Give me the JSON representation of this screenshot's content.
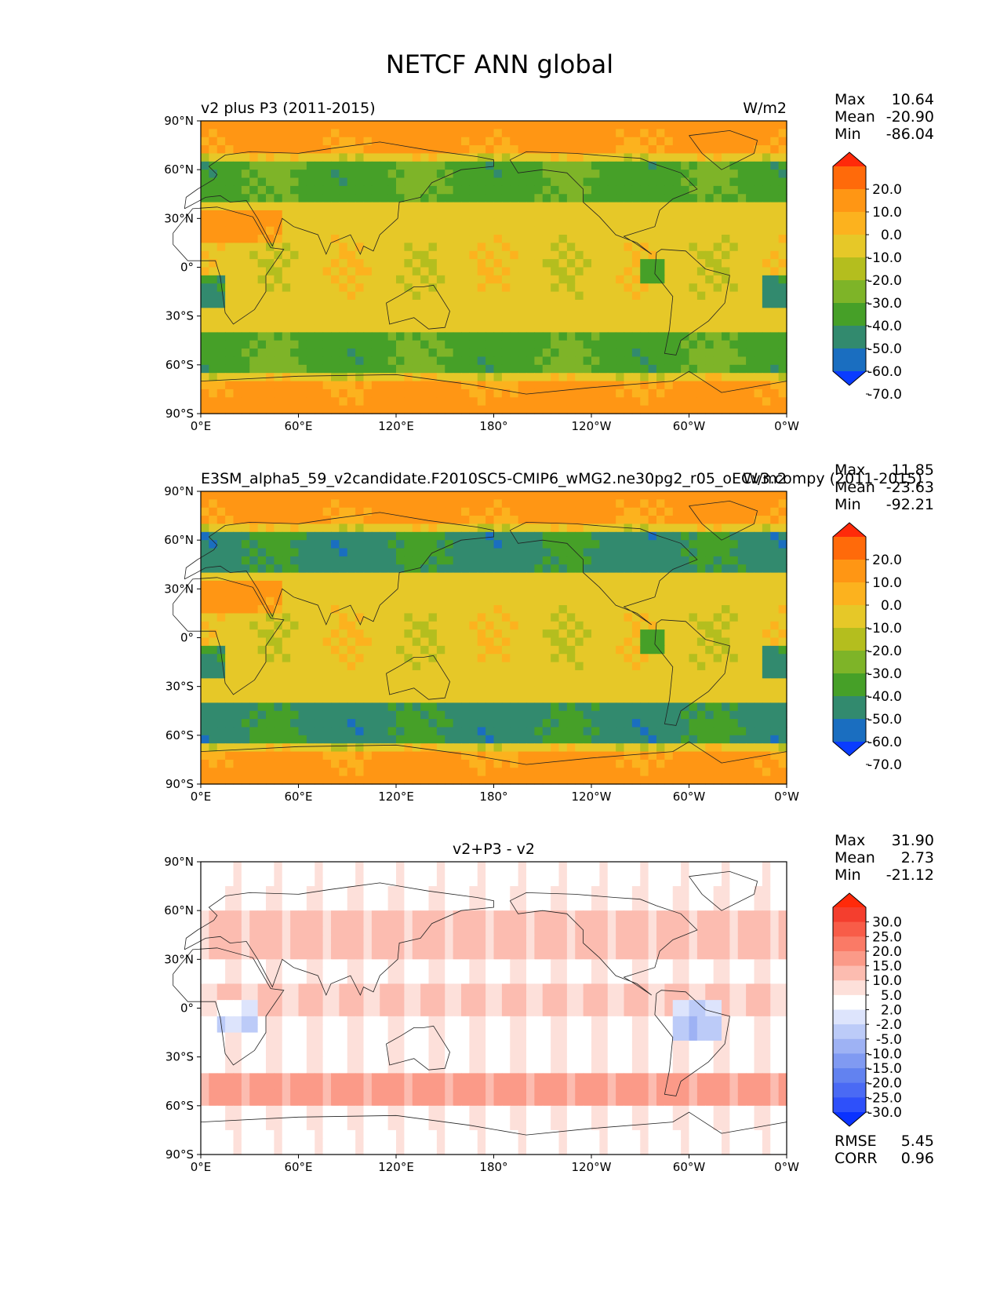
{
  "figure": {
    "title": "NETCF ANN global"
  },
  "chart_data": [
    {
      "type": "heatmap",
      "subtype": "global-map",
      "left_title": "v2 plus P3 (2011-2015)",
      "center_title": "",
      "units": "W/m2",
      "stats": {
        "max_label": "Max",
        "max": "10.64",
        "mean_label": "Mean",
        "mean": "-20.90",
        "min_label": "Min",
        "min": "-86.04"
      },
      "lat_ticks": [
        "90°N",
        "60°N",
        "30°N",
        "0°",
        "30°S",
        "60°S",
        "90°S"
      ],
      "lon_ticks": [
        "0°E",
        "60°E",
        "120°E",
        "180°",
        "120°W",
        "60°W",
        "0°W"
      ],
      "colorbar": {
        "tick_labels": [
          "20.0",
          "10.0",
          "0.0",
          "-10.0",
          "-20.0",
          "-30.0",
          "-40.0",
          "-50.0",
          "-60.0",
          "-70.0"
        ],
        "colors": [
          "#ff2a0a",
          "#ff6a0a",
          "#ff9614",
          "#fcb21e",
          "#e6c828",
          "#b4be1e",
          "#7eb428",
          "#46a028",
          "#328a6e",
          "#1a6ec0",
          "#0a3cff"
        ]
      }
    },
    {
      "type": "heatmap",
      "subtype": "global-map",
      "left_title": "E3SM_alpha5_59_v2candidate.F2010SC5-CMIP6_wMG2.ne30pg2_r05_oECv3.compy (2011-2015)",
      "center_title": "",
      "units": "W/m2",
      "stats": {
        "max_label": "Max",
        "max": "11.85",
        "mean_label": "Mean",
        "mean": "-23.63",
        "min_label": "Min",
        "min": "-92.21"
      },
      "lat_ticks": [
        "90°N",
        "60°N",
        "30°N",
        "0°",
        "30°S",
        "60°S",
        "90°S"
      ],
      "lon_ticks": [
        "0°E",
        "60°E",
        "120°E",
        "180°",
        "120°W",
        "60°W",
        "0°W"
      ],
      "colorbar": {
        "tick_labels": [
          "20.0",
          "10.0",
          "0.0",
          "-10.0",
          "-20.0",
          "-30.0",
          "-40.0",
          "-50.0",
          "-60.0",
          "-70.0"
        ],
        "colors": [
          "#ff2a0a",
          "#ff6a0a",
          "#ff9614",
          "#fcb21e",
          "#e6c828",
          "#b4be1e",
          "#7eb428",
          "#46a028",
          "#328a6e",
          "#1a6ec0",
          "#0a3cff"
        ]
      }
    },
    {
      "type": "heatmap",
      "subtype": "global-map-difference",
      "left_title": "",
      "center_title": "v2+P3 - v2",
      "units": "",
      "stats": {
        "max_label": "Max",
        "max": "31.90",
        "mean_label": "Mean",
        "mean": "2.73",
        "min_label": "Min",
        "min": "-21.12"
      },
      "lat_ticks": [
        "90°N",
        "60°N",
        "30°N",
        "0°",
        "30°S",
        "60°S",
        "90°S"
      ],
      "lon_ticks": [
        "0°E",
        "60°E",
        "120°E",
        "180°",
        "120°W",
        "60°W",
        "0°W"
      ],
      "colorbar": {
        "tick_labels": [
          "30.0",
          "25.0",
          "20.0",
          "15.0",
          "10.0",
          "5.0",
          "2.0",
          "-2.0",
          "-5.0",
          "-10.0",
          "-15.0",
          "-20.0",
          "-25.0",
          "-30.0"
        ],
        "colors": [
          "#ff2a0a",
          "#f43e2e",
          "#f85c48",
          "#fa7a66",
          "#fb9a88",
          "#fcbcb0",
          "#fde0da",
          "#ffffff",
          "#dde4fc",
          "#bccbf8",
          "#9eb2f4",
          "#809af2",
          "#6282f0",
          "#4a6af4",
          "#2e50fa",
          "#0a32ff"
        ]
      },
      "metrics": {
        "rmse_label": "RMSE",
        "rmse": "5.45",
        "corr_label": "CORR",
        "corr": "0.96"
      }
    }
  ]
}
